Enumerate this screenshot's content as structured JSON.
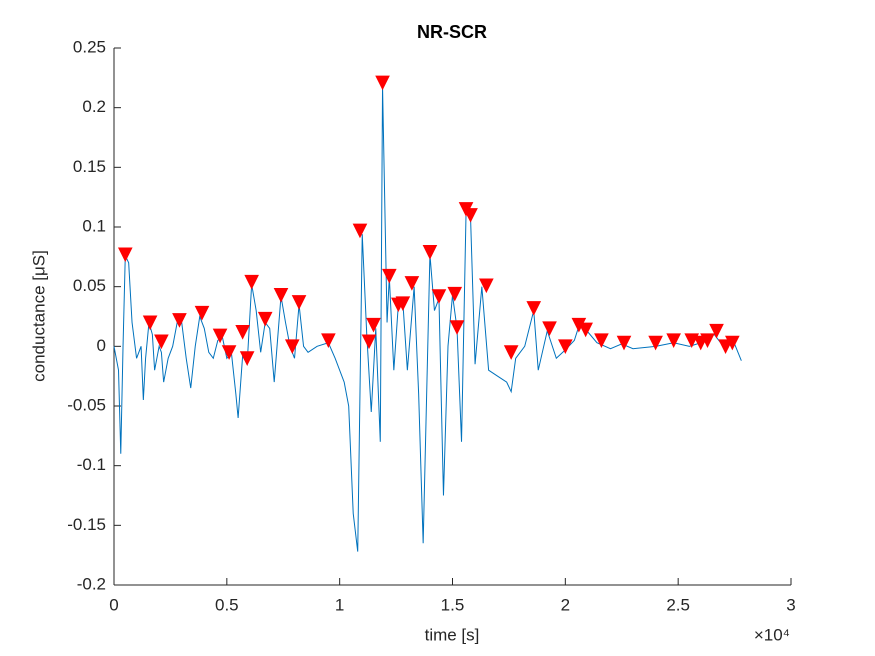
{
  "chart_data": {
    "type": "line",
    "title": "NR-SCR",
    "x_label": "time [s]",
    "y_label": "conductance [μS]",
    "x_exponent_label": "×10⁴",
    "xlim": [
      0,
      3
    ],
    "xticks": [
      0,
      0.5,
      1,
      1.5,
      2,
      2.5,
      3
    ],
    "ylim": [
      -0.2,
      0.25
    ],
    "yticks": [
      -0.2,
      -0.15,
      -0.1,
      -0.05,
      0,
      0.05,
      0.1,
      0.15,
      0.2,
      0.25
    ],
    "grid": false,
    "series": [
      {
        "style": "line",
        "color": "#0072bd",
        "x": [
          0,
          0.02,
          0.03,
          0.04,
          0.05,
          0.065,
          0.08,
          0.1,
          0.12,
          0.13,
          0.14,
          0.155,
          0.17,
          0.18,
          0.2,
          0.21,
          0.22,
          0.24,
          0.26,
          0.28,
          0.3,
          0.32,
          0.34,
          0.36,
          0.38,
          0.4,
          0.42,
          0.44,
          0.46,
          0.48,
          0.5,
          0.52,
          0.54,
          0.55,
          0.57,
          0.59,
          0.61,
          0.63,
          0.65,
          0.67,
          0.69,
          0.71,
          0.74,
          0.76,
          0.78,
          0.8,
          0.82,
          0.84,
          0.86,
          0.9,
          0.95,
          0.98,
          1.02,
          1.04,
          1.06,
          1.08,
          1.1,
          1.12,
          1.14,
          1.16,
          1.18,
          1.19,
          1.21,
          1.22,
          1.24,
          1.26,
          1.28,
          1.3,
          1.33,
          1.35,
          1.37,
          1.4,
          1.42,
          1.44,
          1.46,
          1.48,
          1.5,
          1.52,
          1.54,
          1.56,
          1.58,
          1.6,
          1.63,
          1.66,
          1.7,
          1.74,
          1.76,
          1.78,
          1.82,
          1.86,
          1.88,
          1.92,
          1.96,
          2.0,
          2.04,
          2.06,
          2.1,
          2.14,
          2.2,
          2.25,
          2.3,
          2.4,
          2.48,
          2.55,
          2.6,
          2.66,
          2.7,
          2.75,
          2.78
        ],
        "values": [
          0,
          -0.02,
          -0.09,
          0.0,
          0.076,
          0.07,
          0.02,
          -0.01,
          0.0,
          -0.045,
          -0.01,
          0.02,
          0.01,
          -0.02,
          0.0,
          -0.005,
          -0.03,
          -0.01,
          0.0,
          0.02,
          0.02,
          -0.01,
          -0.035,
          0.0,
          0.025,
          0.015,
          -0.005,
          -0.01,
          0.005,
          0.008,
          -0.01,
          -0.005,
          -0.04,
          -0.06,
          -0.008,
          -0.015,
          0.052,
          0.03,
          -0.005,
          0.02,
          0.015,
          -0.03,
          0.042,
          0.02,
          0.0,
          -0.01,
          0.035,
          0.0,
          -0.005,
          0.0,
          0.003,
          -0.01,
          -0.03,
          -0.05,
          -0.14,
          -0.172,
          0.094,
          0.01,
          -0.055,
          0.015,
          -0.08,
          0.218,
          0.02,
          0.058,
          -0.02,
          0.035,
          0.037,
          -0.02,
          0.05,
          -0.04,
          -0.165,
          0.077,
          0.03,
          0.04,
          -0.125,
          0.0,
          0.043,
          0.015,
          -0.08,
          0.112,
          0.108,
          -0.015,
          0.05,
          -0.02,
          -0.025,
          -0.03,
          -0.038,
          -0.01,
          0.0,
          0.03,
          -0.02,
          0.013,
          -0.01,
          -0.003,
          0.005,
          0.017,
          0.012,
          0.003,
          -0.002,
          0.002,
          -0.002,
          0.0,
          0.003,
          0.0,
          0.003,
          0.01,
          0.0,
          0.002,
          -0.012
        ]
      },
      {
        "style": "markers",
        "marker": "triangle-down",
        "color": "#ff0000",
        "x": [
          0.05,
          0.16,
          0.21,
          0.29,
          0.39,
          0.47,
          0.51,
          0.57,
          0.59,
          0.61,
          0.67,
          0.74,
          0.79,
          0.82,
          0.95,
          1.09,
          1.13,
          1.15,
          1.19,
          1.22,
          1.26,
          1.28,
          1.32,
          1.4,
          1.44,
          1.51,
          1.52,
          1.56,
          1.58,
          1.65,
          1.76,
          1.86,
          1.93,
          2.0,
          2.06,
          2.09,
          2.16,
          2.26,
          2.4,
          2.48,
          2.56,
          2.6,
          2.63,
          2.67,
          2.71,
          2.74
        ],
        "values": [
          0.077,
          0.02,
          0.004,
          0.022,
          0.028,
          0.009,
          -0.005,
          0.012,
          -0.01,
          0.054,
          0.023,
          0.043,
          0.0,
          0.037,
          0.005,
          0.097,
          0.004,
          0.018,
          0.221,
          0.059,
          0.035,
          0.036,
          0.053,
          0.079,
          0.042,
          0.044,
          0.016,
          0.115,
          0.11,
          0.051,
          -0.005,
          0.032,
          0.015,
          0.0,
          0.018,
          0.014,
          0.005,
          0.003,
          0.003,
          0.005,
          0.005,
          0.003,
          0.005,
          0.013,
          0.0,
          0.003
        ]
      }
    ]
  }
}
